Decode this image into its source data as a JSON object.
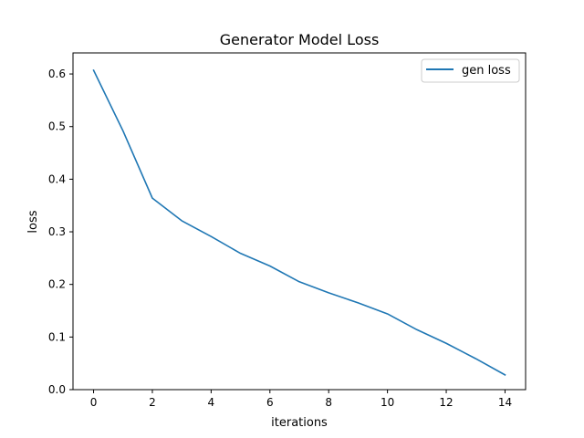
{
  "chart_data": {
    "type": "line",
    "title": "Generator Model Loss",
    "xlabel": "iterations",
    "ylabel": "loss",
    "xlim": [
      -0.7,
      14.7
    ],
    "ylim": [
      0,
      0.64
    ],
    "xticks": [
      0,
      2,
      4,
      6,
      8,
      10,
      12,
      14
    ],
    "yticks": [
      0.0,
      0.1,
      0.2,
      0.3,
      0.4,
      0.5,
      0.6
    ],
    "grid": false,
    "legend_position": "top-right",
    "series": [
      {
        "name": "gen loss",
        "color": "#1f77b4",
        "x": [
          0,
          1,
          2,
          3,
          4,
          5,
          6,
          7,
          8,
          9,
          10,
          11,
          12,
          13,
          14
        ],
        "y": [
          0.607,
          0.492,
          0.364,
          0.321,
          0.291,
          0.259,
          0.235,
          0.205,
          0.184,
          0.165,
          0.144,
          0.114,
          0.088,
          0.059,
          0.028
        ]
      }
    ]
  }
}
